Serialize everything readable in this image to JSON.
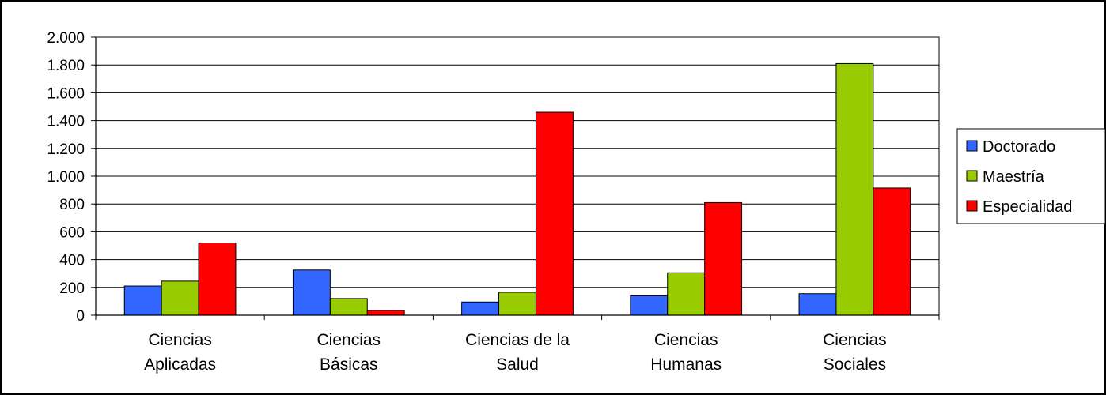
{
  "chart_data": {
    "type": "bar",
    "categories": [
      [
        "Ciencias",
        "Aplicadas"
      ],
      [
        "Ciencias",
        "Básicas"
      ],
      [
        "Ciencias de la",
        "Salud"
      ],
      [
        "Ciencias",
        "Humanas"
      ],
      [
        "Ciencias",
        "Sociales"
      ]
    ],
    "series": [
      {
        "name": "Doctorado",
        "color": "#3366ff",
        "values": [
          210,
          325,
          95,
          140,
          155
        ]
      },
      {
        "name": "Maestría",
        "color": "#99cc00",
        "values": [
          245,
          120,
          165,
          305,
          1810
        ]
      },
      {
        "name": "Especialidad",
        "color": "#ff0000",
        "values": [
          520,
          35,
          1460,
          810,
          915
        ]
      }
    ],
    "ylim": [
      0,
      2000
    ],
    "yticks": [
      0,
      200,
      400,
      600,
      800,
      1000,
      1200,
      1400,
      1600,
      1800,
      2000
    ],
    "ytick_labels": [
      "0",
      "200",
      "400",
      "600",
      "800",
      "1.000",
      "1.200",
      "1.400",
      "1.600",
      "1.800",
      "2.000"
    ],
    "grid": true,
    "legend_position": "right",
    "title": "",
    "xlabel": "",
    "ylabel": ""
  }
}
